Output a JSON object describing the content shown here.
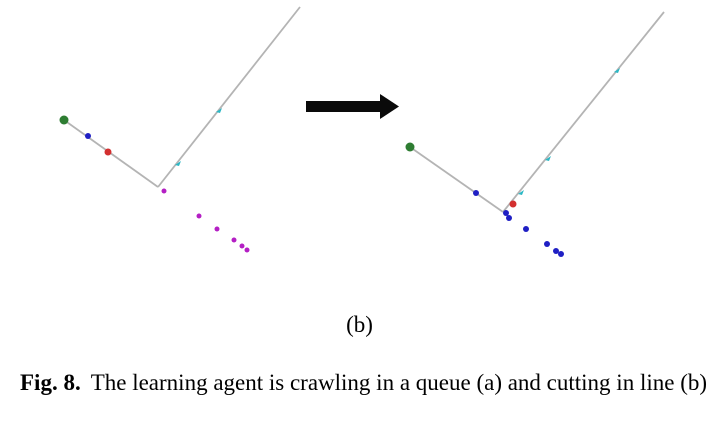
{
  "figure": {
    "subcaption": "(b)",
    "caption_label": "Fig. 8.",
    "caption_text": "The learning agent is crawling in a queue (a) and cutting in line (b)"
  },
  "colors": {
    "road": "#b4b4b4",
    "arrow": "#0a0a0a",
    "agent_start": "#2e7d32",
    "learning_agent": "#d32f2f",
    "queue_blue": "#1f1fc4",
    "queue_magenta": "#b41fc4",
    "marker_cyan": "#2bb7c4"
  },
  "panels": [
    {
      "name": "before",
      "roads": [
        "upper-road",
        "lower-road"
      ],
      "agents": [
        {
          "kind": "start",
          "color_key": "agent_start"
        },
        {
          "kind": "queue",
          "color_key": "queue_blue"
        },
        {
          "kind": "learning",
          "color_key": "learning_agent"
        },
        {
          "kind": "queue",
          "color_key": "queue_magenta"
        },
        {
          "kind": "queue",
          "color_key": "queue_magenta"
        },
        {
          "kind": "queue",
          "color_key": "queue_magenta"
        },
        {
          "kind": "queue",
          "color_key": "queue_magenta"
        },
        {
          "kind": "queue",
          "color_key": "queue_magenta"
        },
        {
          "kind": "queue",
          "color_key": "queue_magenta"
        }
      ]
    },
    {
      "name": "after",
      "roads": [
        "upper-road",
        "lower-road"
      ],
      "agents": [
        {
          "kind": "start",
          "color_key": "agent_start"
        },
        {
          "kind": "queue",
          "color_key": "queue_blue"
        },
        {
          "kind": "learning",
          "color_key": "learning_agent"
        },
        {
          "kind": "queue",
          "color_key": "queue_blue"
        },
        {
          "kind": "queue",
          "color_key": "queue_blue"
        },
        {
          "kind": "queue",
          "color_key": "queue_blue"
        },
        {
          "kind": "queue",
          "color_key": "queue_blue"
        },
        {
          "kind": "queue",
          "color_key": "queue_blue"
        },
        {
          "kind": "queue",
          "color_key": "queue_blue"
        }
      ]
    }
  ]
}
